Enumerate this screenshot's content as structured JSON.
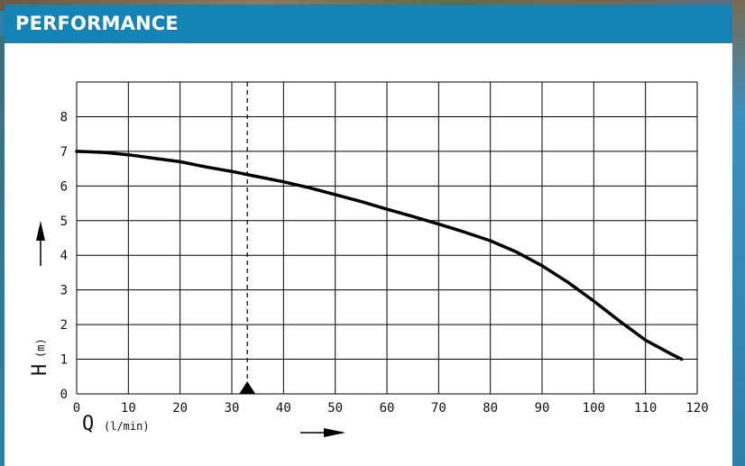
{
  "header": {
    "title": "PERFORMANCE"
  },
  "colors": {
    "header_bg": "#1483b5",
    "curve": "#000000",
    "grid": "#000000"
  },
  "chart_data": {
    "type": "line",
    "title": "",
    "xlabel_symbol": "Q",
    "xlabel_unit": "(l/min)",
    "ylabel_symbol": "H",
    "ylabel_unit": "(m)",
    "xlim": [
      0,
      120
    ],
    "ylim": [
      0,
      9
    ],
    "x_ticks": [
      0,
      10,
      20,
      30,
      40,
      50,
      60,
      70,
      80,
      90,
      100,
      110,
      120
    ],
    "y_ticks": [
      0,
      1,
      2,
      3,
      4,
      5,
      6,
      7,
      8
    ],
    "grid": true,
    "operating_point_q": 33,
    "series": [
      {
        "x": [
          0,
          5,
          10,
          15,
          20,
          25,
          30,
          35,
          40,
          45,
          50,
          55,
          60,
          65,
          70,
          75,
          80,
          85,
          90,
          95,
          100,
          105,
          110,
          115,
          117
        ],
        "y": [
          7.0,
          6.97,
          6.9,
          6.8,
          6.7,
          6.55,
          6.42,
          6.27,
          6.12,
          5.95,
          5.75,
          5.55,
          5.33,
          5.12,
          4.9,
          4.67,
          4.42,
          4.1,
          3.7,
          3.22,
          2.68,
          2.1,
          1.55,
          1.15,
          1.0
        ]
      }
    ]
  }
}
